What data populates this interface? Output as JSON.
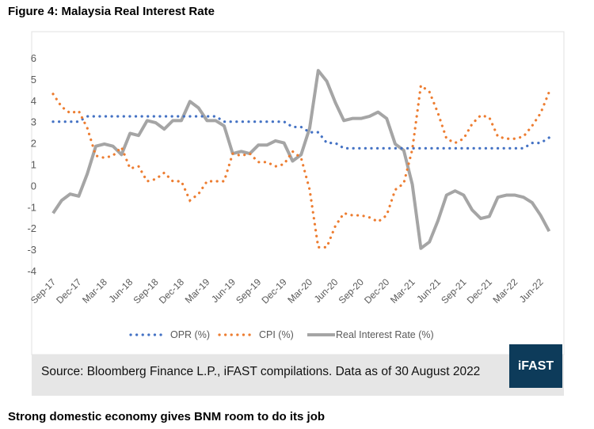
{
  "title": "Figure 4: Malaysia Real Interest Rate",
  "subheading": "Strong domestic economy gives BNM room to do its job",
  "source": "Source: Bloomberg Finance L.P., iFAST compilations. Data as of 30 August 2022",
  "logo": "iFAST",
  "chart_data": {
    "type": "line",
    "title": "",
    "xlabel": "",
    "ylabel": "",
    "ylim": [
      -4,
      6
    ],
    "yticks": [
      "6",
      "5",
      "4",
      "3",
      "2",
      "1",
      "0",
      "-1",
      "-2",
      "-3",
      "-4"
    ],
    "x": [
      "Sep-17",
      "Oct-17",
      "Nov-17",
      "Dec-17",
      "Jan-18",
      "Feb-18",
      "Mar-18",
      "Apr-18",
      "May-18",
      "Jun-18",
      "Jul-18",
      "Aug-18",
      "Sep-18",
      "Oct-18",
      "Nov-18",
      "Dec-18",
      "Jan-19",
      "Feb-19",
      "Mar-19",
      "Apr-19",
      "May-19",
      "Jun-19",
      "Jul-19",
      "Aug-19",
      "Sep-19",
      "Oct-19",
      "Nov-19",
      "Dec-19",
      "Jan-20",
      "Feb-20",
      "Mar-20",
      "Apr-20",
      "May-20",
      "Jun-20",
      "Jul-20",
      "Aug-20",
      "Sep-20",
      "Oct-20",
      "Nov-20",
      "Dec-20",
      "Jan-21",
      "Feb-21",
      "Mar-21",
      "Apr-21",
      "May-21",
      "Jun-21",
      "Jul-21",
      "Aug-21",
      "Sep-21",
      "Oct-21",
      "Nov-21",
      "Dec-21",
      "Jan-22",
      "Feb-22",
      "Mar-22",
      "Apr-22",
      "May-22",
      "Jun-22",
      "Jul-22"
    ],
    "xtick_labels": [
      "Sep-17",
      "Dec-17",
      "Mar-18",
      "Jun-18",
      "Sep-18",
      "Dec-18",
      "Mar-19",
      "Jun-19",
      "Sep-19",
      "Dec-19",
      "Mar-20",
      "Jun-20",
      "Sep-20",
      "Dec-20",
      "Mar-21",
      "Jun-21",
      "Sep-21",
      "Dec-21",
      "Mar-22",
      "Jun-22"
    ],
    "grid": false,
    "legend": "bottom",
    "series": [
      {
        "name": "OPR (%)",
        "color": "#4472c4",
        "style": "dotted",
        "values": [
          3,
          3,
          3,
          3,
          3.25,
          3.25,
          3.25,
          3.25,
          3.25,
          3.25,
          3.25,
          3.25,
          3.25,
          3.25,
          3.25,
          3.25,
          3.25,
          3.25,
          3.25,
          3.25,
          3,
          3,
          3,
          3,
          3,
          3,
          3,
          3,
          2.75,
          2.75,
          2.5,
          2.5,
          2,
          2,
          1.75,
          1.75,
          1.75,
          1.75,
          1.75,
          1.75,
          1.75,
          1.75,
          1.75,
          1.75,
          1.75,
          1.75,
          1.75,
          1.75,
          1.75,
          1.75,
          1.75,
          1.75,
          1.75,
          1.75,
          1.75,
          1.75,
          2,
          2,
          2.25
        ]
      },
      {
        "name": "CPI (%)",
        "color": "#ed7d31",
        "style": "dotted",
        "values": [
          4.3,
          3.7,
          3.4,
          3.5,
          2.7,
          1.4,
          1.3,
          1.4,
          1.8,
          0.8,
          0.9,
          0.2,
          0.3,
          0.6,
          0.2,
          0.2,
          -0.7,
          -0.4,
          0.2,
          0.2,
          0.2,
          1.5,
          1.4,
          1.5,
          1.1,
          1.1,
          0.9,
          1.0,
          1.6,
          1.3,
          -0.2,
          -2.9,
          -2.9,
          -1.9,
          -1.3,
          -1.4,
          -1.4,
          -1.5,
          -1.7,
          -1.4,
          -0.2,
          0.1,
          1.7,
          4.7,
          4.4,
          3.4,
          2.2,
          2.0,
          2.2,
          2.9,
          3.3,
          3.2,
          2.3,
          2.2,
          2.2,
          2.3,
          2.8,
          3.4,
          4.4
        ]
      },
      {
        "name": "Real Interest Rate (%)",
        "color": "#a5a5a5",
        "style": "solid",
        "values": [
          -1.3,
          -0.7,
          -0.4,
          -0.5,
          0.55,
          1.85,
          1.95,
          1.85,
          1.45,
          2.45,
          2.35,
          3.05,
          2.95,
          2.65,
          3.05,
          3.05,
          3.95,
          3.65,
          3.05,
          3.05,
          2.8,
          1.5,
          1.6,
          1.5,
          1.9,
          1.9,
          2.1,
          2.0,
          1.15,
          1.45,
          2.7,
          5.4,
          4.9,
          3.9,
          3.05,
          3.15,
          3.15,
          3.25,
          3.45,
          3.15,
          1.95,
          1.65,
          0.05,
          -2.95,
          -2.65,
          -1.65,
          -0.45,
          -0.25,
          -0.45,
          -1.15,
          -1.55,
          -1.45,
          -0.55,
          -0.45,
          -0.45,
          -0.55,
          -0.8,
          -1.4,
          -2.15
        ]
      }
    ]
  }
}
